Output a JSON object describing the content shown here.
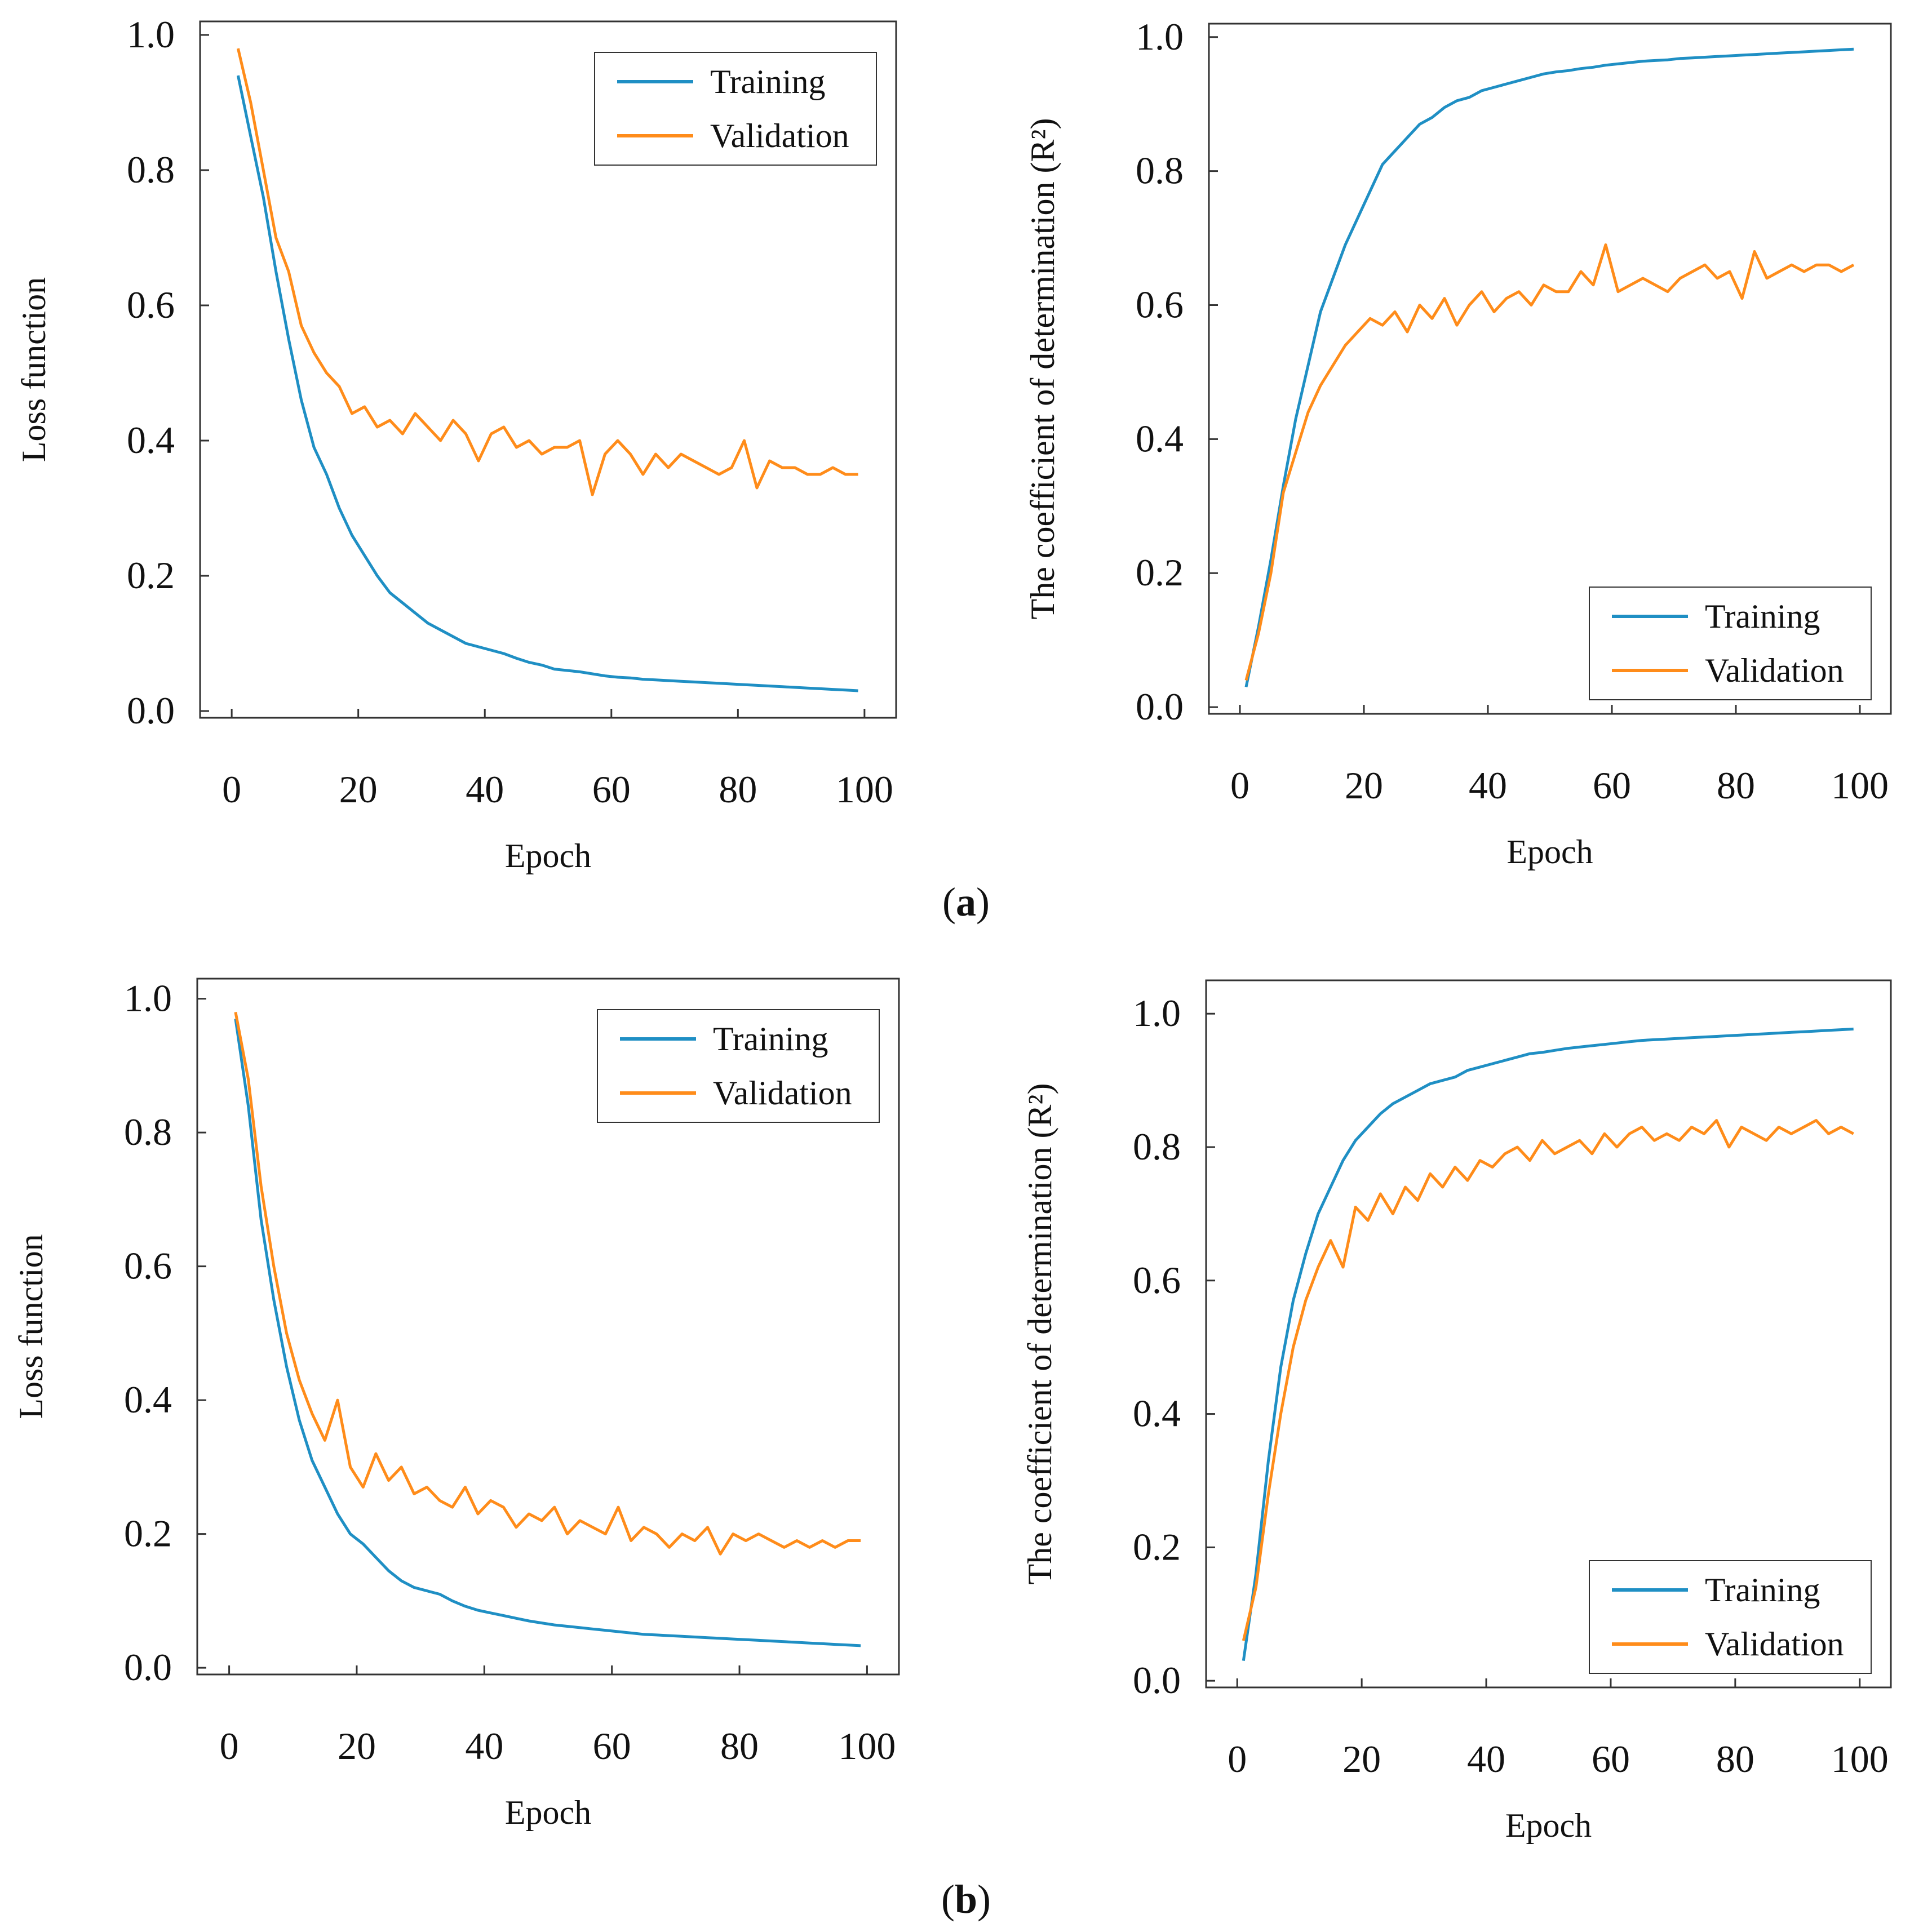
{
  "colors": {
    "training": "#1f8fc4",
    "validation": "#ff8c1a",
    "axis": "#333333"
  },
  "panel_labels": {
    "a": "a",
    "b": "b"
  },
  "chart_data": [
    {
      "id": "a-loss",
      "type": "line",
      "xlabel": "Epoch",
      "ylabel": "Loss function",
      "xlim": [
        -5,
        105
      ],
      "ylim": [
        -0.01,
        1.02
      ],
      "xticks": [
        0,
        20,
        40,
        60,
        80,
        100
      ],
      "yticks": [
        0.0,
        0.2,
        0.4,
        0.6,
        0.8,
        1.0
      ],
      "legend": {
        "position": "top-right",
        "entries": [
          "Training",
          "Validation"
        ]
      },
      "series": [
        {
          "name": "Training",
          "x": [
            1,
            3,
            5,
            7,
            9,
            11,
            13,
            15,
            17,
            19,
            21,
            23,
            25,
            27,
            29,
            31,
            33,
            35,
            37,
            39,
            41,
            43,
            45,
            47,
            49,
            51,
            53,
            55,
            57,
            59,
            61,
            63,
            65,
            67,
            69,
            71,
            73,
            75,
            77,
            79,
            81,
            83,
            85,
            87,
            89,
            91,
            93,
            95,
            97,
            99
          ],
          "y": [
            0.94,
            0.85,
            0.76,
            0.65,
            0.55,
            0.46,
            0.39,
            0.35,
            0.3,
            0.26,
            0.23,
            0.2,
            0.175,
            0.16,
            0.145,
            0.13,
            0.12,
            0.11,
            0.1,
            0.095,
            0.09,
            0.085,
            0.078,
            0.072,
            0.068,
            0.062,
            0.06,
            0.058,
            0.055,
            0.052,
            0.05,
            0.049,
            0.047,
            0.046,
            0.045,
            0.044,
            0.043,
            0.042,
            0.041,
            0.04,
            0.039,
            0.038,
            0.037,
            0.036,
            0.035,
            0.034,
            0.033,
            0.032,
            0.031,
            0.03
          ]
        },
        {
          "name": "Validation",
          "x": [
            1,
            3,
            5,
            7,
            9,
            11,
            13,
            15,
            17,
            19,
            21,
            23,
            25,
            27,
            29,
            31,
            33,
            35,
            37,
            39,
            41,
            43,
            45,
            47,
            49,
            51,
            53,
            55,
            57,
            59,
            61,
            63,
            65,
            67,
            69,
            71,
            73,
            75,
            77,
            79,
            81,
            83,
            85,
            87,
            89,
            91,
            93,
            95,
            97,
            99
          ],
          "y": [
            0.98,
            0.9,
            0.8,
            0.7,
            0.65,
            0.57,
            0.53,
            0.5,
            0.48,
            0.44,
            0.45,
            0.42,
            0.43,
            0.41,
            0.44,
            0.42,
            0.4,
            0.43,
            0.41,
            0.37,
            0.41,
            0.42,
            0.39,
            0.4,
            0.38,
            0.39,
            0.39,
            0.4,
            0.32,
            0.38,
            0.4,
            0.38,
            0.35,
            0.38,
            0.36,
            0.38,
            0.37,
            0.36,
            0.35,
            0.36,
            0.4,
            0.33,
            0.37,
            0.36,
            0.36,
            0.35,
            0.35,
            0.36,
            0.35,
            0.35
          ]
        }
      ]
    },
    {
      "id": "a-r2",
      "type": "line",
      "xlabel": "Epoch",
      "ylabel": "The coefficient of determination (R²)",
      "xlim": [
        -5,
        105
      ],
      "ylim": [
        -0.01,
        1.02
      ],
      "xticks": [
        0,
        20,
        40,
        60,
        80,
        100
      ],
      "yticks": [
        0.0,
        0.2,
        0.4,
        0.6,
        0.8,
        1.0
      ],
      "legend": {
        "position": "bottom-right",
        "entries": [
          "Training",
          "Validation"
        ]
      },
      "series": [
        {
          "name": "Training",
          "x": [
            1,
            3,
            5,
            7,
            9,
            11,
            13,
            15,
            17,
            19,
            21,
            23,
            25,
            27,
            29,
            31,
            33,
            35,
            37,
            39,
            41,
            43,
            45,
            47,
            49,
            51,
            53,
            55,
            57,
            59,
            61,
            63,
            65,
            67,
            69,
            71,
            73,
            75,
            77,
            79,
            81,
            83,
            85,
            87,
            89,
            91,
            93,
            95,
            97,
            99
          ],
          "y": [
            0.03,
            0.12,
            0.22,
            0.33,
            0.43,
            0.51,
            0.59,
            0.64,
            0.69,
            0.73,
            0.77,
            0.81,
            0.83,
            0.85,
            0.87,
            0.88,
            0.895,
            0.905,
            0.91,
            0.92,
            0.925,
            0.93,
            0.935,
            0.94,
            0.945,
            0.948,
            0.95,
            0.953,
            0.955,
            0.958,
            0.96,
            0.962,
            0.964,
            0.965,
            0.966,
            0.968,
            0.969,
            0.97,
            0.971,
            0.972,
            0.973,
            0.974,
            0.975,
            0.976,
            0.977,
            0.978,
            0.979,
            0.98,
            0.981,
            0.982
          ]
        },
        {
          "name": "Validation",
          "x": [
            1,
            3,
            5,
            7,
            9,
            11,
            13,
            15,
            17,
            19,
            21,
            23,
            25,
            27,
            29,
            31,
            33,
            35,
            37,
            39,
            41,
            43,
            45,
            47,
            49,
            51,
            53,
            55,
            57,
            59,
            61,
            63,
            65,
            67,
            69,
            71,
            73,
            75,
            77,
            79,
            81,
            83,
            85,
            87,
            89,
            91,
            93,
            95,
            97,
            99
          ],
          "y": [
            0.04,
            0.11,
            0.2,
            0.32,
            0.38,
            0.44,
            0.48,
            0.51,
            0.54,
            0.56,
            0.58,
            0.57,
            0.59,
            0.56,
            0.6,
            0.58,
            0.61,
            0.57,
            0.6,
            0.62,
            0.59,
            0.61,
            0.62,
            0.6,
            0.63,
            0.62,
            0.62,
            0.65,
            0.63,
            0.69,
            0.62,
            0.63,
            0.64,
            0.63,
            0.62,
            0.64,
            0.65,
            0.66,
            0.64,
            0.65,
            0.61,
            0.68,
            0.64,
            0.65,
            0.66,
            0.65,
            0.66,
            0.66,
            0.65,
            0.66
          ]
        }
      ]
    },
    {
      "id": "b-loss",
      "type": "line",
      "xlabel": "Epoch",
      "ylabel": "Loss function",
      "xlim": [
        -5,
        105
      ],
      "ylim": [
        -0.01,
        1.03
      ],
      "xticks": [
        0,
        20,
        40,
        60,
        80,
        100
      ],
      "yticks": [
        0.0,
        0.2,
        0.4,
        0.6,
        0.8,
        1.0
      ],
      "legend": {
        "position": "top-right",
        "entries": [
          "Training",
          "Validation"
        ]
      },
      "series": [
        {
          "name": "Training",
          "x": [
            1,
            3,
            5,
            7,
            9,
            11,
            13,
            15,
            17,
            19,
            21,
            23,
            25,
            27,
            29,
            31,
            33,
            35,
            37,
            39,
            41,
            43,
            45,
            47,
            49,
            51,
            53,
            55,
            57,
            59,
            61,
            63,
            65,
            67,
            69,
            71,
            73,
            75,
            77,
            79,
            81,
            83,
            85,
            87,
            89,
            91,
            93,
            95,
            97,
            99
          ],
          "y": [
            0.97,
            0.84,
            0.67,
            0.55,
            0.45,
            0.37,
            0.31,
            0.27,
            0.23,
            0.2,
            0.185,
            0.165,
            0.145,
            0.13,
            0.12,
            0.115,
            0.11,
            0.1,
            0.092,
            0.086,
            0.082,
            0.078,
            0.074,
            0.07,
            0.067,
            0.064,
            0.062,
            0.06,
            0.058,
            0.056,
            0.054,
            0.052,
            0.05,
            0.049,
            0.048,
            0.047,
            0.046,
            0.045,
            0.044,
            0.043,
            0.042,
            0.041,
            0.04,
            0.039,
            0.038,
            0.037,
            0.036,
            0.035,
            0.034,
            0.033
          ]
        },
        {
          "name": "Validation",
          "x": [
            1,
            3,
            5,
            7,
            9,
            11,
            13,
            15,
            17,
            19,
            21,
            23,
            25,
            27,
            29,
            31,
            33,
            35,
            37,
            39,
            41,
            43,
            45,
            47,
            49,
            51,
            53,
            55,
            57,
            59,
            61,
            63,
            65,
            67,
            69,
            71,
            73,
            75,
            77,
            79,
            81,
            83,
            85,
            87,
            89,
            91,
            93,
            95,
            97,
            99
          ],
          "y": [
            0.98,
            0.88,
            0.72,
            0.6,
            0.5,
            0.43,
            0.38,
            0.34,
            0.4,
            0.3,
            0.27,
            0.32,
            0.28,
            0.3,
            0.26,
            0.27,
            0.25,
            0.24,
            0.27,
            0.23,
            0.25,
            0.24,
            0.21,
            0.23,
            0.22,
            0.24,
            0.2,
            0.22,
            0.21,
            0.2,
            0.24,
            0.19,
            0.21,
            0.2,
            0.18,
            0.2,
            0.19,
            0.21,
            0.17,
            0.2,
            0.19,
            0.2,
            0.19,
            0.18,
            0.19,
            0.18,
            0.19,
            0.18,
            0.19,
            0.19
          ]
        }
      ]
    },
    {
      "id": "b-r2",
      "type": "line",
      "xlabel": "Epoch",
      "ylabel": "The coefficient of determination (R²)",
      "xlim": [
        -5,
        105
      ],
      "ylim": [
        -0.01,
        1.05
      ],
      "xticks": [
        0,
        20,
        40,
        60,
        80,
        100
      ],
      "yticks": [
        0.0,
        0.2,
        0.4,
        0.6,
        0.8,
        1.0
      ],
      "legend": {
        "position": "bottom-right",
        "entries": [
          "Training",
          "Validation"
        ]
      },
      "series": [
        {
          "name": "Training",
          "x": [
            1,
            3,
            5,
            7,
            9,
            11,
            13,
            15,
            17,
            19,
            21,
            23,
            25,
            27,
            29,
            31,
            33,
            35,
            37,
            39,
            41,
            43,
            45,
            47,
            49,
            51,
            53,
            55,
            57,
            59,
            61,
            63,
            65,
            67,
            69,
            71,
            73,
            75,
            77,
            79,
            81,
            83,
            85,
            87,
            89,
            91,
            93,
            95,
            97,
            99
          ],
          "y": [
            0.03,
            0.16,
            0.33,
            0.47,
            0.57,
            0.64,
            0.7,
            0.74,
            0.78,
            0.81,
            0.83,
            0.85,
            0.865,
            0.875,
            0.885,
            0.895,
            0.9,
            0.905,
            0.915,
            0.92,
            0.925,
            0.93,
            0.935,
            0.94,
            0.942,
            0.945,
            0.948,
            0.95,
            0.952,
            0.954,
            0.956,
            0.958,
            0.96,
            0.961,
            0.962,
            0.963,
            0.964,
            0.965,
            0.966,
            0.967,
            0.968,
            0.969,
            0.97,
            0.971,
            0.972,
            0.973,
            0.974,
            0.975,
            0.976,
            0.977
          ]
        },
        {
          "name": "Validation",
          "x": [
            1,
            3,
            5,
            7,
            9,
            11,
            13,
            15,
            17,
            19,
            21,
            23,
            25,
            27,
            29,
            31,
            33,
            35,
            37,
            39,
            41,
            43,
            45,
            47,
            49,
            51,
            53,
            55,
            57,
            59,
            61,
            63,
            65,
            67,
            69,
            71,
            73,
            75,
            77,
            79,
            81,
            83,
            85,
            87,
            89,
            91,
            93,
            95,
            97,
            99
          ],
          "y": [
            0.06,
            0.14,
            0.28,
            0.4,
            0.5,
            0.57,
            0.62,
            0.66,
            0.62,
            0.71,
            0.69,
            0.73,
            0.7,
            0.74,
            0.72,
            0.76,
            0.74,
            0.77,
            0.75,
            0.78,
            0.77,
            0.79,
            0.8,
            0.78,
            0.81,
            0.79,
            0.8,
            0.81,
            0.79,
            0.82,
            0.8,
            0.82,
            0.83,
            0.81,
            0.82,
            0.81,
            0.83,
            0.82,
            0.84,
            0.8,
            0.83,
            0.82,
            0.81,
            0.83,
            0.82,
            0.83,
            0.84,
            0.82,
            0.83,
            0.82
          ]
        }
      ]
    }
  ]
}
